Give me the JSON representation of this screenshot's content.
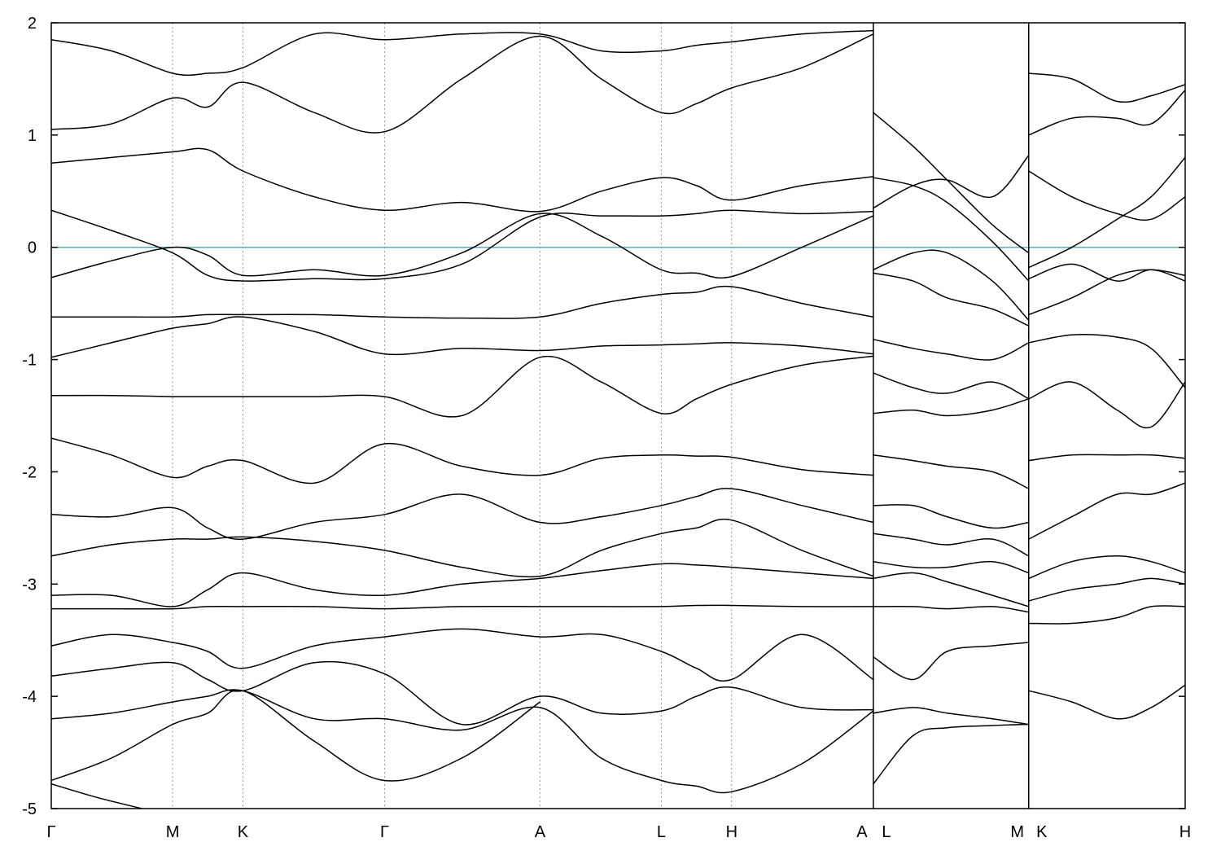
{
  "chart_data": {
    "type": "line",
    "title": "",
    "xlabel": "",
    "ylabel": "",
    "ylim": [
      -5,
      2
    ],
    "yticks": [
      -5,
      -4,
      -3,
      -2,
      -1,
      0,
      1,
      2
    ],
    "ytick_labels": [
      "-5",
      "-4",
      "-3",
      "-2",
      "-1",
      "0",
      "1",
      "2"
    ],
    "high_symmetry_points": [
      {
        "label": "Γ",
        "k": 0.0
      },
      {
        "label": "M",
        "k": 0.107
      },
      {
        "label": "K",
        "k": 0.169
      },
      {
        "label": "Γ",
        "k": 0.294
      },
      {
        "label": "A",
        "k": 0.431
      },
      {
        "label": "L",
        "k": 0.538
      },
      {
        "label": "H",
        "k": 0.6
      },
      {
        "label": "A",
        "k": 0.725
      },
      {
        "label": "L",
        "k": 0.725
      },
      {
        "label": "M",
        "k": 0.862
      },
      {
        "label": "K",
        "k": 0.862
      },
      {
        "label": "H",
        "k": 1.0
      }
    ],
    "discontinuities_k": [
      0.725,
      0.862
    ],
    "fermi_level": 0,
    "fermi_color": "#4fb3c8",
    "band_color": "#000000",
    "grid": "vertical dotted lines at high-symmetry points",
    "series": [
      {
        "x": [
          0.0,
          0.053,
          0.107,
          0.138,
          0.169,
          0.232,
          0.294,
          0.362,
          0.431,
          0.485,
          0.538,
          0.569,
          0.6,
          0.662,
          0.725
        ],
        "values": [
          -0.27,
          -0.12,
          0.0,
          -0.07,
          -0.25,
          -0.2,
          -0.25,
          -0.05,
          0.3,
          0.1,
          -0.2,
          -0.23,
          -0.26,
          0.0,
          0.28
        ]
      },
      {
        "x": [
          0.0,
          0.053,
          0.107,
          0.138,
          0.169,
          0.232,
          0.294,
          0.362,
          0.431,
          0.485,
          0.538,
          0.569,
          0.6,
          0.662,
          0.725
        ],
        "values": [
          0.33,
          0.15,
          -0.05,
          -0.25,
          -0.3,
          -0.28,
          -0.28,
          -0.15,
          0.27,
          0.28,
          0.28,
          0.3,
          0.33,
          0.3,
          0.32
        ]
      },
      {
        "x": [
          0.0,
          0.053,
          0.107,
          0.138,
          0.169,
          0.232,
          0.294,
          0.362,
          0.431,
          0.485,
          0.538,
          0.569,
          0.6,
          0.662,
          0.725
        ],
        "values": [
          0.75,
          0.8,
          0.85,
          0.87,
          0.68,
          0.45,
          0.33,
          0.4,
          0.32,
          0.5,
          0.62,
          0.55,
          0.42,
          0.55,
          0.63
        ]
      },
      {
        "x": [
          0.0,
          0.053,
          0.107,
          0.138,
          0.169,
          0.232,
          0.294,
          0.362,
          0.431,
          0.485,
          0.538,
          0.569,
          0.6,
          0.662,
          0.725
        ],
        "values": [
          1.05,
          1.1,
          1.33,
          1.25,
          1.47,
          1.2,
          1.03,
          1.5,
          1.88,
          1.5,
          1.2,
          1.28,
          1.42,
          1.6,
          1.9
        ]
      },
      {
        "x": [
          0.0,
          0.053,
          0.107,
          0.138,
          0.169,
          0.232,
          0.294,
          0.362,
          0.431,
          0.485,
          0.538,
          0.569,
          0.6,
          0.662,
          0.725
        ],
        "values": [
          1.85,
          1.75,
          1.55,
          1.55,
          1.6,
          1.9,
          1.85,
          1.9,
          1.9,
          1.75,
          1.75,
          1.8,
          1.83,
          1.9,
          1.93
        ]
      },
      {
        "x": [
          0.0,
          0.053,
          0.107,
          0.138,
          0.169,
          0.232,
          0.294,
          0.362,
          0.431,
          0.485,
          0.538,
          0.569,
          0.6,
          0.662,
          0.725
        ],
        "values": [
          -0.62,
          -0.62,
          -0.62,
          -0.6,
          -0.6,
          -0.6,
          -0.62,
          -0.63,
          -0.62,
          -0.5,
          -0.42,
          -0.4,
          -0.35,
          -0.5,
          -0.62
        ]
      },
      {
        "x": [
          0.0,
          0.053,
          0.107,
          0.138,
          0.169,
          0.232,
          0.294,
          0.362,
          0.431,
          0.485,
          0.538,
          0.569,
          0.6,
          0.662,
          0.725
        ],
        "values": [
          -0.98,
          -0.85,
          -0.72,
          -0.68,
          -0.62,
          -0.75,
          -0.95,
          -0.9,
          -0.92,
          -0.88,
          -0.87,
          -0.86,
          -0.85,
          -0.88,
          -0.95
        ]
      },
      {
        "x": [
          0.0,
          0.053,
          0.107,
          0.138,
          0.169,
          0.232,
          0.294,
          0.362,
          0.431,
          0.485,
          0.538,
          0.569,
          0.6,
          0.662,
          0.725
        ],
        "values": [
          -1.32,
          -1.32,
          -1.33,
          -1.33,
          -1.33,
          -1.33,
          -1.33,
          -1.5,
          -0.98,
          -1.2,
          -1.48,
          -1.35,
          -1.22,
          -1.05,
          -0.97
        ]
      },
      {
        "x": [
          0.0,
          0.053,
          0.107,
          0.138,
          0.169,
          0.232,
          0.294,
          0.362,
          0.431,
          0.485,
          0.538,
          0.569,
          0.6,
          0.662,
          0.725
        ],
        "values": [
          -1.7,
          -1.85,
          -2.05,
          -1.95,
          -1.9,
          -2.1,
          -1.75,
          -1.95,
          -2.03,
          -1.88,
          -1.85,
          -1.86,
          -1.87,
          -1.98,
          -2.03
        ]
      },
      {
        "x": [
          0.0,
          0.053,
          0.107,
          0.138,
          0.169,
          0.232,
          0.294,
          0.362,
          0.431,
          0.485,
          0.538,
          0.569,
          0.6,
          0.662,
          0.725
        ],
        "values": [
          -2.38,
          -2.4,
          -2.32,
          -2.5,
          -2.6,
          -2.45,
          -2.38,
          -2.2,
          -2.45,
          -2.4,
          -2.3,
          -2.22,
          -2.15,
          -2.3,
          -2.45
        ]
      },
      {
        "x": [
          0.0,
          0.053,
          0.107,
          0.138,
          0.169,
          0.232,
          0.294,
          0.362,
          0.431,
          0.485,
          0.538,
          0.569,
          0.6,
          0.662,
          0.725
        ],
        "values": [
          -2.75,
          -2.65,
          -2.6,
          -2.6,
          -2.58,
          -2.62,
          -2.7,
          -2.85,
          -2.93,
          -2.7,
          -2.55,
          -2.5,
          -2.43,
          -2.7,
          -2.93
        ]
      },
      {
        "x": [
          0.0,
          0.053,
          0.107,
          0.138,
          0.169,
          0.232,
          0.294,
          0.362,
          0.431,
          0.485,
          0.538,
          0.569,
          0.6,
          0.662,
          0.725
        ],
        "values": [
          -3.1,
          -3.1,
          -3.2,
          -3.05,
          -2.9,
          -3.05,
          -3.1,
          -3.0,
          -2.95,
          -2.88,
          -2.82,
          -2.83,
          -2.85,
          -2.9,
          -2.95
        ]
      },
      {
        "x": [
          0.0,
          0.053,
          0.107,
          0.138,
          0.169,
          0.232,
          0.294,
          0.362,
          0.431,
          0.485,
          0.538,
          0.569,
          0.6,
          0.662,
          0.725
        ],
        "values": [
          -3.22,
          -3.22,
          -3.22,
          -3.2,
          -3.2,
          -3.2,
          -3.22,
          -3.2,
          -3.2,
          -3.2,
          -3.2,
          -3.19,
          -3.19,
          -3.2,
          -3.2
        ]
      },
      {
        "x": [
          0.0,
          0.053,
          0.107,
          0.138,
          0.169,
          0.232,
          0.294,
          0.362,
          0.431,
          0.485,
          0.538,
          0.569,
          0.6,
          0.662,
          0.725
        ],
        "values": [
          -3.55,
          -3.45,
          -3.52,
          -3.6,
          -3.75,
          -3.55,
          -3.47,
          -3.4,
          -3.47,
          -3.45,
          -3.6,
          -3.75,
          -3.85,
          -3.45,
          -3.85
        ]
      },
      {
        "x": [
          0.0,
          0.053,
          0.107,
          0.138,
          0.169,
          0.232,
          0.294,
          0.362,
          0.431,
          0.485,
          0.538,
          0.569,
          0.6,
          0.662,
          0.725
        ],
        "values": [
          -3.82,
          -3.75,
          -3.7,
          -3.85,
          -3.95,
          -3.7,
          -3.8,
          -4.25,
          -4.0,
          -4.15,
          -4.13,
          -4.0,
          -3.92,
          -4.1,
          -4.12
        ]
      },
      {
        "x": [
          0.0,
          0.053,
          0.107,
          0.138,
          0.169,
          0.232,
          0.294,
          0.362,
          0.431,
          0.485,
          0.538,
          0.569,
          0.6,
          0.662,
          0.725
        ],
        "values": [
          -4.2,
          -4.15,
          -4.05,
          -4.0,
          -3.95,
          -4.2,
          -4.2,
          -4.3,
          -4.1,
          -4.55,
          -4.75,
          -4.8,
          -4.85,
          -4.6,
          -4.13
        ]
      },
      {
        "x": [
          0.0,
          0.053,
          0.107,
          0.138,
          0.169,
          0.232,
          0.294,
          0.362,
          0.431
        ],
        "values": [
          -4.75,
          -4.55,
          -4.25,
          -4.15,
          -3.95,
          -4.4,
          -4.75,
          -4.55,
          -4.05
        ]
      },
      {
        "x": [
          0.0,
          0.04,
          0.08
        ],
        "values": [
          -4.78,
          -4.9,
          -5.0
        ]
      },
      {
        "x": [
          0.725,
          0.76,
          0.79,
          0.83,
          0.862
        ],
        "values": [
          1.2,
          0.9,
          0.6,
          0.2,
          -0.05
        ]
      },
      {
        "x": [
          0.725,
          0.76,
          0.79,
          0.83,
          0.862
        ],
        "values": [
          0.62,
          0.55,
          0.4,
          0.05,
          -0.3
        ]
      },
      {
        "x": [
          0.725,
          0.76,
          0.79,
          0.83,
          0.862
        ],
        "values": [
          0.35,
          0.55,
          0.6,
          0.45,
          0.82
        ]
      },
      {
        "x": [
          0.725,
          0.76,
          0.79,
          0.83,
          0.862
        ],
        "values": [
          -0.2,
          -0.05,
          -0.05,
          -0.3,
          -0.65
        ]
      },
      {
        "x": [
          0.725,
          0.76,
          0.79,
          0.83,
          0.862
        ],
        "values": [
          -0.23,
          -0.3,
          -0.45,
          -0.55,
          -0.7
        ]
      },
      {
        "x": [
          0.725,
          0.76,
          0.79,
          0.83,
          0.862
        ],
        "values": [
          -0.82,
          -0.9,
          -0.95,
          -1.0,
          -0.85
        ]
      },
      {
        "x": [
          0.725,
          0.76,
          0.79,
          0.83,
          0.862
        ],
        "values": [
          -1.12,
          -1.25,
          -1.3,
          -1.2,
          -1.35
        ]
      },
      {
        "x": [
          0.725,
          0.76,
          0.79,
          0.83,
          0.862
        ],
        "values": [
          -1.48,
          -1.45,
          -1.5,
          -1.45,
          -1.35
        ]
      },
      {
        "x": [
          0.725,
          0.76,
          0.79,
          0.83,
          0.862
        ],
        "values": [
          -1.85,
          -1.9,
          -1.95,
          -2.0,
          -2.15
        ]
      },
      {
        "x": [
          0.725,
          0.76,
          0.79,
          0.83,
          0.862
        ],
        "values": [
          -2.3,
          -2.3,
          -2.4,
          -2.5,
          -2.45
        ]
      },
      {
        "x": [
          0.725,
          0.76,
          0.79,
          0.83,
          0.862
        ],
        "values": [
          -2.55,
          -2.6,
          -2.65,
          -2.6,
          -2.75
        ]
      },
      {
        "x": [
          0.725,
          0.76,
          0.79,
          0.83,
          0.862
        ],
        "values": [
          -2.8,
          -2.85,
          -2.85,
          -2.8,
          -2.9
        ]
      },
      {
        "x": [
          0.725,
          0.76,
          0.79,
          0.83,
          0.862
        ],
        "values": [
          -2.95,
          -2.9,
          -2.98,
          -3.1,
          -3.2
        ]
      },
      {
        "x": [
          0.725,
          0.76,
          0.79,
          0.83,
          0.862
        ],
        "values": [
          -3.2,
          -3.2,
          -3.22,
          -3.2,
          -3.25
        ]
      },
      {
        "x": [
          0.725,
          0.76,
          0.79,
          0.83,
          0.862
        ],
        "values": [
          -3.65,
          -3.85,
          -3.6,
          -3.55,
          -3.52
        ]
      },
      {
        "x": [
          0.725,
          0.76,
          0.79,
          0.83,
          0.862
        ],
        "values": [
          -4.15,
          -4.1,
          -4.15,
          -4.2,
          -4.25
        ]
      },
      {
        "x": [
          0.725,
          0.76,
          0.79,
          0.83,
          0.862
        ],
        "values": [
          -4.78,
          -4.35,
          -4.28,
          -4.26,
          -4.25
        ]
      },
      {
        "x": [
          0.862,
          0.9,
          0.94,
          0.97,
          1.0
        ],
        "values": [
          -0.18,
          0.0,
          0.25,
          0.45,
          0.8
        ]
      },
      {
        "x": [
          0.862,
          0.9,
          0.94,
          0.97,
          1.0
        ],
        "values": [
          0.68,
          0.45,
          0.3,
          0.25,
          0.45
        ]
      },
      {
        "x": [
          0.862,
          0.9,
          0.94,
          0.97,
          1.0
        ],
        "values": [
          -0.28,
          -0.15,
          -0.3,
          -0.2,
          -0.3
        ]
      },
      {
        "x": [
          0.862,
          0.9,
          0.94,
          0.97,
          1.0
        ],
        "values": [
          -0.6,
          -0.45,
          -0.25,
          -0.2,
          -0.25
        ]
      },
      {
        "x": [
          0.862,
          0.9,
          0.94,
          0.97,
          1.0
        ],
        "values": [
          -0.85,
          -0.78,
          -0.8,
          -0.9,
          -1.25
        ]
      },
      {
        "x": [
          0.862,
          0.9,
          0.94,
          0.97,
          1.0
        ],
        "values": [
          -1.35,
          -1.2,
          -1.45,
          -1.6,
          -1.2
        ]
      },
      {
        "x": [
          0.862,
          0.9,
          0.94,
          0.97,
          1.0
        ],
        "values": [
          -1.9,
          -1.85,
          -1.85,
          -1.85,
          -1.88
        ]
      },
      {
        "x": [
          0.862,
          0.9,
          0.94,
          0.97,
          1.0
        ],
        "values": [
          -2.6,
          -2.4,
          -2.2,
          -2.2,
          -2.1
        ]
      },
      {
        "x": [
          0.862,
          0.9,
          0.94,
          0.97,
          1.0
        ],
        "values": [
          -2.95,
          -2.8,
          -2.75,
          -2.8,
          -2.9
        ]
      },
      {
        "x": [
          0.862,
          0.9,
          0.94,
          0.97,
          1.0
        ],
        "values": [
          -3.15,
          -3.05,
          -3.0,
          -2.95,
          -3.0
        ]
      },
      {
        "x": [
          0.862,
          0.9,
          0.94,
          0.97,
          1.0
        ],
        "values": [
          -3.35,
          -3.35,
          -3.3,
          -3.2,
          -3.2
        ]
      },
      {
        "x": [
          0.862,
          0.9,
          0.94,
          0.97,
          1.0
        ],
        "values": [
          -3.95,
          -4.05,
          -4.2,
          -4.1,
          -3.9
        ]
      },
      {
        "x": [
          0.862,
          0.9,
          0.94,
          0.97,
          1.0
        ],
        "values": [
          1.55,
          1.5,
          1.3,
          1.35,
          1.45
        ]
      },
      {
        "x": [
          0.862,
          0.9,
          0.94,
          0.97,
          1.0
        ],
        "values": [
          1.0,
          1.15,
          1.15,
          1.1,
          1.4
        ]
      }
    ]
  }
}
